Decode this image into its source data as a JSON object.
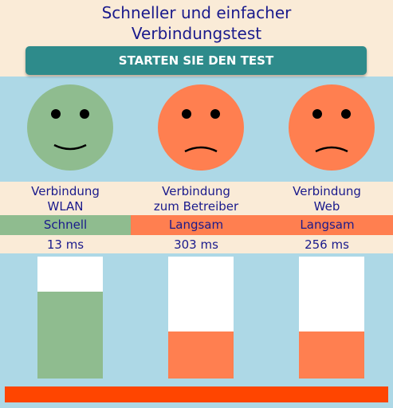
{
  "header": {
    "title_lines": [
      "Schneller und einfacher",
      "Verbindungstest"
    ],
    "button": "STARTEN SIE DEN TEST"
  },
  "columns": [
    {
      "label_lines": [
        "Verbindung",
        "WLAN"
      ],
      "status": "Schnell",
      "latency": "13 ms",
      "color": "#8fbc8f"
    },
    {
      "label_lines": [
        "Verbindung",
        "zum Betreiber"
      ],
      "status": "Langsam",
      "latency": "303 ms",
      "color": "#ff7f50"
    },
    {
      "label_lines": [
        "Verbindung",
        "Web"
      ],
      "status": "Langsam",
      "latency": "256 ms",
      "color": "#ff7f50"
    }
  ]
}
